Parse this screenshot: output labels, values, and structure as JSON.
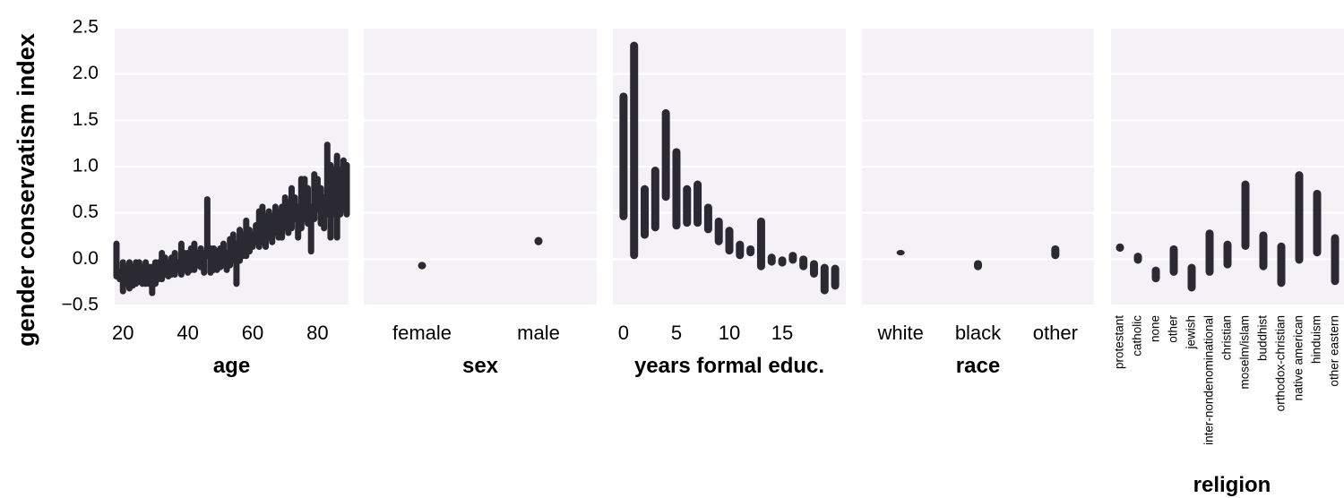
{
  "ylabel": "gender conservatism index",
  "y_ticks": [
    "2.5",
    "2.0",
    "1.5",
    "1.0",
    "0.5",
    "0.0",
    "−0.5"
  ],
  "colors": {
    "panel_bg": "#f4f2f6",
    "grid": "#ffffff",
    "bar": "#2b2a33"
  },
  "chart_data": [
    {
      "type": "bar",
      "panel": "age",
      "xlabel": "age",
      "x_ticks": [
        "20",
        "40",
        "60",
        "80"
      ],
      "x_tick_values": [
        20,
        40,
        60,
        80
      ],
      "xlim": [
        18,
        89
      ],
      "ylim": [
        -0.5,
        2.5
      ],
      "grid": true,
      "series": [
        {
          "x": [
            18,
            19,
            20,
            21,
            22,
            23,
            24,
            25,
            26,
            27,
            28,
            29,
            30,
            31,
            32,
            33,
            34,
            35,
            36,
            37,
            38,
            39,
            40,
            41,
            42,
            43,
            44,
            45,
            46,
            47,
            48,
            49,
            50,
            51,
            52,
            53,
            54,
            55,
            56,
            57,
            58,
            59,
            60,
            61,
            62,
            63,
            64,
            65,
            66,
            67,
            68,
            69,
            70,
            71,
            72,
            73,
            74,
            75,
            76,
            77,
            78,
            79,
            80,
            81,
            82,
            83,
            84,
            85,
            86,
            87,
            88,
            89
          ],
          "low": [
            -0.22,
            -0.25,
            -0.38,
            -0.3,
            -0.35,
            -0.32,
            -0.3,
            -0.28,
            -0.3,
            -0.3,
            -0.3,
            -0.4,
            -0.3,
            -0.25,
            -0.25,
            -0.2,
            -0.22,
            -0.2,
            -0.2,
            -0.15,
            -0.2,
            -0.15,
            -0.18,
            -0.15,
            -0.15,
            -0.1,
            -0.12,
            -0.18,
            0.0,
            -0.18,
            -0.15,
            -0.15,
            -0.12,
            -0.1,
            -0.15,
            -0.1,
            -0.05,
            -0.3,
            -0.05,
            0.0,
            0.0,
            0.05,
            0.1,
            0.15,
            0.1,
            0.15,
            0.1,
            0.2,
            0.15,
            0.25,
            0.2,
            0.2,
            0.3,
            0.25,
            0.3,
            0.4,
            0.2,
            0.3,
            0.4,
            0.35,
            0.05,
            0.4,
            0.5,
            0.35,
            0.3,
            0.45,
            0.2,
            0.45,
            0.2,
            0.45,
            0.5,
            0.45
          ],
          "high": [
            0.2,
            -0.1,
            0.0,
            -0.05,
            0.0,
            -0.05,
            0.0,
            0.0,
            -0.05,
            0.0,
            -0.05,
            -0.05,
            0.0,
            0.0,
            0.1,
            0.05,
            0.0,
            0.05,
            0.1,
            0.0,
            0.2,
            0.1,
            0.1,
            0.15,
            0.2,
            0.1,
            0.15,
            0.1,
            0.68,
            0.15,
            0.15,
            0.12,
            0.15,
            0.2,
            0.1,
            0.25,
            0.3,
            0.2,
            0.35,
            0.3,
            0.45,
            0.35,
            0.3,
            0.4,
            0.55,
            0.6,
            0.5,
            0.55,
            0.5,
            0.6,
            0.55,
            0.6,
            0.7,
            0.65,
            0.8,
            0.7,
            0.6,
            0.9,
            0.9,
            0.8,
            0.6,
            0.95,
            0.9,
            0.8,
            0.7,
            1.27,
            1.05,
            1.0,
            1.15,
            1.0,
            1.1,
            1.05
          ]
        }
      ]
    },
    {
      "type": "bar",
      "panel": "sex",
      "xlabel": "sex",
      "categories": [
        "female",
        "male"
      ],
      "ylim": [
        -0.5,
        2.5
      ],
      "grid": true,
      "series": [
        {
          "low": [
            -0.11,
            0.15
          ],
          "high": [
            -0.03,
            0.24
          ]
        }
      ]
    },
    {
      "type": "bar",
      "panel": "education",
      "xlabel": "years formal educ.",
      "x_ticks": [
        "0",
        "5",
        "10",
        "15"
      ],
      "x_tick_values": [
        0,
        5,
        10,
        15
      ],
      "xlim": [
        -0.5,
        20.5
      ],
      "ylim": [
        -0.5,
        2.5
      ],
      "grid": true,
      "series": [
        {
          "x": [
            0,
            1,
            2,
            3,
            4,
            5,
            6,
            7,
            8,
            9,
            10,
            11,
            12,
            13,
            14,
            15,
            16,
            17,
            18,
            19,
            20
          ],
          "low": [
            0.42,
            0.0,
            0.22,
            0.3,
            0.63,
            0.32,
            0.35,
            0.35,
            0.28,
            0.15,
            0.05,
            0.0,
            0.03,
            -0.12,
            -0.07,
            -0.08,
            -0.05,
            -0.12,
            -0.2,
            -0.38,
            -0.33
          ],
          "high": [
            1.8,
            2.35,
            0.8,
            1.0,
            1.62,
            1.2,
            0.8,
            0.85,
            0.6,
            0.45,
            0.35,
            0.2,
            0.15,
            0.45,
            0.06,
            0.03,
            0.08,
            0.04,
            -0.01,
            -0.05,
            -0.06
          ]
        }
      ]
    },
    {
      "type": "bar",
      "panel": "race",
      "xlabel": "race",
      "categories": [
        "white",
        "black",
        "other"
      ],
      "ylim": [
        -0.5,
        2.5
      ],
      "grid": true,
      "series": [
        {
          "low": [
            0.04,
            -0.12,
            0.0
          ],
          "high": [
            0.1,
            -0.01,
            0.15
          ]
        }
      ]
    },
    {
      "type": "bar",
      "panel": "religion",
      "xlabel": "religion",
      "categories": [
        "protestant",
        "catholic",
        "none",
        "other",
        "jewish",
        "inter-nondenominational",
        "christian",
        "moselm/islam",
        "buddhist",
        "orthodox-christian",
        "native american",
        "hinduism",
        "other eastern"
      ],
      "ylim": [
        -0.5,
        2.5
      ],
      "grid": true,
      "series": [
        {
          "low": [
            0.08,
            -0.05,
            -0.25,
            -0.18,
            -0.35,
            -0.18,
            -0.1,
            0.1,
            -0.12,
            -0.3,
            -0.05,
            0.03,
            -0.28
          ],
          "high": [
            0.17,
            0.07,
            -0.08,
            0.15,
            -0.05,
            0.32,
            0.2,
            0.85,
            0.3,
            0.18,
            0.95,
            0.75,
            0.27
          ]
        }
      ]
    }
  ]
}
